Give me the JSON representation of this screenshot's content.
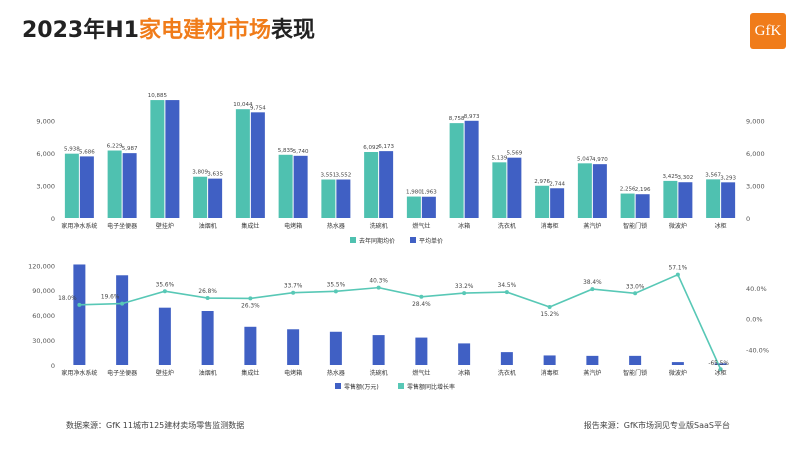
{
  "header": {
    "title_prefix": "2023年H1",
    "title_highlight": "家电建材市场",
    "title_suffix": "表现",
    "logo_text": "GfK"
  },
  "colors": {
    "teal": "#4fc1b0",
    "blue": "#4060c4",
    "line": "#58c8b6",
    "highlight": "#f07c1a"
  },
  "chart_data": [
    {
      "type": "bar",
      "categories": [
        "家用净水系统",
        "电子坐便器",
        "壁挂炉",
        "油烟机",
        "集成灶",
        "电烤箱",
        "热水器",
        "洗碗机",
        "燃气灶",
        "冰箱",
        "洗衣机",
        "消毒柜",
        "蒸汽炉",
        "智能门锁",
        "微波炉",
        "冰柜"
      ],
      "series": [
        {
          "name": "去年同期均价",
          "color": "#4fc1b0",
          "values": [
            5938,
            6229,
            10885,
            3809,
            10044,
            5835,
            3551,
            6092,
            1980,
            8758,
            5139,
            2976,
            5047,
            2256,
            3425,
            3567
          ]
        },
        {
          "name": "平均单价",
          "color": "#4060c4",
          "values": [
            5686,
            5987,
            10885,
            3635,
            9754,
            5740,
            3552,
            6173,
            1963,
            8973,
            5569,
            2744,
            4970,
            2196,
            3302,
            3293
          ]
        }
      ],
      "value_labels": [
        [
          "5,938",
          "6,229",
          "10,885",
          "3,809",
          "10,044",
          "5,835",
          "3,551",
          "6,092",
          "1,980",
          "8,758",
          "5,139",
          "2,976",
          "5,047",
          "2,256",
          "3,425",
          "3,567"
        ],
        [
          "5,686",
          "5,987",
          "",
          "3,635",
          "9,754",
          "5,740",
          "3,552",
          "6,173",
          "1,963",
          "8,973",
          "5,569",
          "2,744",
          "4,970",
          "2,196",
          "3,302",
          "3,293"
        ]
      ],
      "ylim": [
        0,
        12000
      ],
      "yticks": [
        0,
        3000,
        6000,
        9000
      ],
      "ytick_labels": [
        "0",
        "3,000",
        "6,000",
        "9,000"
      ],
      "legend_position": "bottom",
      "grid": false
    },
    {
      "type": "bar",
      "categories": [
        "家用净水系统",
        "电子坐便器",
        "壁挂炉",
        "油烟机",
        "集成灶",
        "电烤箱",
        "热水器",
        "洗碗机",
        "燃气灶",
        "冰箱",
        "洗衣机",
        "消毒柜",
        "蒸汽炉",
        "智能门锁",
        "微波炉",
        "冰柜"
      ],
      "series": [
        {
          "name": "零售额(万元)",
          "type": "bar",
          "color": "#4060c4",
          "values": [
            121000,
            108000,
            69000,
            65000,
            46000,
            43000,
            40000,
            36000,
            33000,
            26000,
            15500,
            11500,
            11000,
            11000,
            3500,
            2000
          ]
        },
        {
          "name": "零售额同比增长率",
          "type": "line",
          "color": "#58c8b6",
          "axis": "right",
          "unit": "%",
          "values": [
            18.0,
            19.6,
            35.6,
            26.8,
            26.3,
            33.7,
            35.5,
            40.3,
            28.4,
            33.2,
            34.5,
            15.2,
            38.4,
            33.0,
            57.1,
            -65.5
          ]
        }
      ],
      "line_labels": [
        "18.0%",
        "19.6%",
        "35.6%",
        "26.8%",
        "26.3%",
        "33.7%",
        "35.5%",
        "40.3%",
        "28.4%",
        "33.2%",
        "34.5%",
        "15.2%",
        "38.4%",
        "33.0%",
        "57.1%",
        "-65.5%"
      ],
      "ylim_left": [
        0,
        130000
      ],
      "yticks_left": [
        0,
        30000,
        60000,
        90000,
        120000
      ],
      "ytick_labels_left": [
        "0",
        "30,000",
        "60,000",
        "90,000",
        "120,000"
      ],
      "ylim_right": [
        -60,
        80
      ],
      "yticks_right": [
        -40,
        0,
        40
      ],
      "ytick_labels_right": [
        "-40.0%",
        "0.0%",
        "40.0%"
      ],
      "legend_position": "bottom",
      "grid": false
    }
  ],
  "footer": {
    "source_left": "数据来源：GfK 11城市125建材卖场零售监测数据",
    "source_right": "报告来源：GfK市场洞见专业版SaaS平台"
  }
}
